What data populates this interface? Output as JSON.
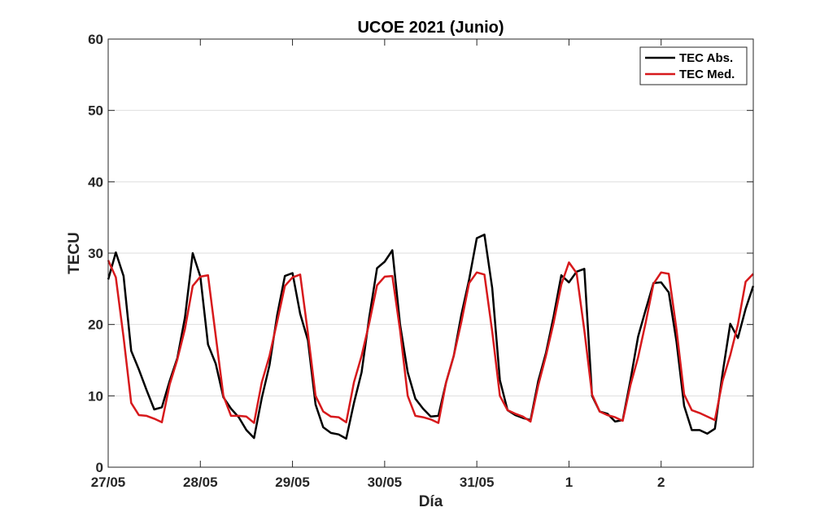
{
  "chart_data": {
    "type": "line",
    "title": "UCOE 2021 (Junio)",
    "xlabel": "Día",
    "ylabel": "TECU",
    "ylim": [
      0,
      60
    ],
    "yticks": [
      0,
      10,
      20,
      30,
      40,
      50,
      60
    ],
    "xlim": [
      0,
      7
    ],
    "xticks": [
      {
        "x": 0,
        "label": "27/05"
      },
      {
        "x": 1,
        "label": "28/05"
      },
      {
        "x": 2,
        "label": "29/05"
      },
      {
        "x": 3,
        "label": "30/05"
      },
      {
        "x": 4,
        "label": "31/05"
      },
      {
        "x": 5,
        "label": "1"
      },
      {
        "x": 6,
        "label": "2"
      }
    ],
    "grid": "horizontal",
    "legend": "top-right",
    "series": [
      {
        "name": "TEC Abs.",
        "color": "#000000",
        "x": [
          0,
          0.083,
          0.167,
          0.25,
          0.333,
          0.417,
          0.5,
          0.583,
          0.667,
          0.75,
          0.833,
          0.917,
          1,
          1.083,
          1.167,
          1.25,
          1.333,
          1.417,
          1.5,
          1.583,
          1.667,
          1.75,
          1.833,
          1.917,
          2,
          2.083,
          2.167,
          2.25,
          2.333,
          2.417,
          2.5,
          2.583,
          2.667,
          2.75,
          2.833,
          2.917,
          3,
          3.083,
          3.167,
          3.25,
          3.333,
          3.417,
          3.5,
          3.583,
          3.667,
          3.75,
          3.833,
          3.917,
          4,
          4.083,
          4.167,
          4.25,
          4.333,
          4.417,
          4.5,
          4.583,
          4.667,
          4.75,
          4.833,
          4.917,
          5,
          5.083,
          5.167,
          5.25,
          5.333,
          5.417,
          5.5,
          5.583,
          5.667,
          5.75,
          5.833,
          5.917,
          6,
          6.083,
          6.167,
          6.25,
          6.333,
          6.417,
          6.5,
          6.583,
          6.667,
          6.75,
          6.833,
          6.917,
          7
        ],
        "values": [
          26.3,
          30.1,
          26.8,
          16.3,
          13.7,
          10.8,
          8.1,
          8.4,
          12.1,
          15.3,
          21,
          30,
          26.7,
          17.2,
          14.5,
          9.8,
          8.2,
          7,
          5.2,
          4.1,
          9.7,
          14.3,
          21.3,
          26.8,
          27.2,
          21.5,
          17.8,
          8.8,
          5.6,
          4.8,
          4.6,
          4,
          9,
          13.3,
          21,
          27.9,
          28.8,
          30.4,
          20,
          13.3,
          9.6,
          8.2,
          7.1,
          7.2,
          11.9,
          15.6,
          21.4,
          26.3,
          32.1,
          32.6,
          25.1,
          12.2,
          8,
          7.3,
          6.9,
          6.6,
          12.1,
          16,
          21.1,
          26.9,
          25.9,
          27.4,
          27.8,
          10,
          7.8,
          7.5,
          6.4,
          6.6,
          12.2,
          18.3,
          22.1,
          25.8,
          25.9,
          24.5,
          17.6,
          8.6,
          5.2,
          5.2,
          4.7,
          5.4,
          13.2,
          20.1,
          18.1,
          22.2,
          25.4
        ]
      },
      {
        "name": "TEC Med.",
        "color": "#d7191c",
        "x": [
          0,
          0.083,
          0.167,
          0.25,
          0.333,
          0.417,
          0.5,
          0.583,
          0.667,
          0.75,
          0.833,
          0.917,
          1,
          1.083,
          1.167,
          1.25,
          1.333,
          1.417,
          1.5,
          1.583,
          1.667,
          1.75,
          1.833,
          1.917,
          2,
          2.083,
          2.167,
          2.25,
          2.333,
          2.417,
          2.5,
          2.583,
          2.667,
          2.75,
          2.833,
          2.917,
          3,
          3.083,
          3.167,
          3.25,
          3.333,
          3.417,
          3.5,
          3.583,
          3.667,
          3.75,
          3.833,
          3.917,
          4,
          4.083,
          4.167,
          4.25,
          4.333,
          4.417,
          4.5,
          4.583,
          4.667,
          4.75,
          4.833,
          4.917,
          5,
          5.083,
          5.167,
          5.25,
          5.333,
          5.417,
          5.5,
          5.583,
          5.667,
          5.75,
          5.833,
          5.917,
          6,
          6.083,
          6.167,
          6.25,
          6.333,
          6.417,
          6.5,
          6.583,
          6.667,
          6.75,
          6.833,
          6.917,
          7
        ],
        "values": [
          29,
          26.6,
          18.2,
          9,
          7.3,
          7.2,
          6.8,
          6.3,
          11.6,
          15.1,
          19.4,
          25.4,
          26.7,
          26.9,
          18.4,
          10,
          7.2,
          7.2,
          7.1,
          6.2,
          11.9,
          15.6,
          20.4,
          25.4,
          26.6,
          27,
          18.8,
          10,
          7.8,
          7.1,
          7,
          6.3,
          11.9,
          15.6,
          20.2,
          25.5,
          26.7,
          26.8,
          19.2,
          10,
          7.2,
          7,
          6.7,
          6.2,
          11.9,
          15.6,
          20.4,
          25.8,
          27.3,
          27,
          19,
          10,
          8,
          7.5,
          7.1,
          6.4,
          11.5,
          15.6,
          20.2,
          25.6,
          28.7,
          27.2,
          19.2,
          10.2,
          7.8,
          7.3,
          7,
          6.5,
          11.5,
          15.4,
          20.3,
          25.7,
          27.3,
          27.1,
          19.3,
          10.2,
          8,
          7.6,
          7.1,
          6.6,
          12.1,
          15.7,
          20,
          26,
          27.1
        ]
      }
    ]
  }
}
